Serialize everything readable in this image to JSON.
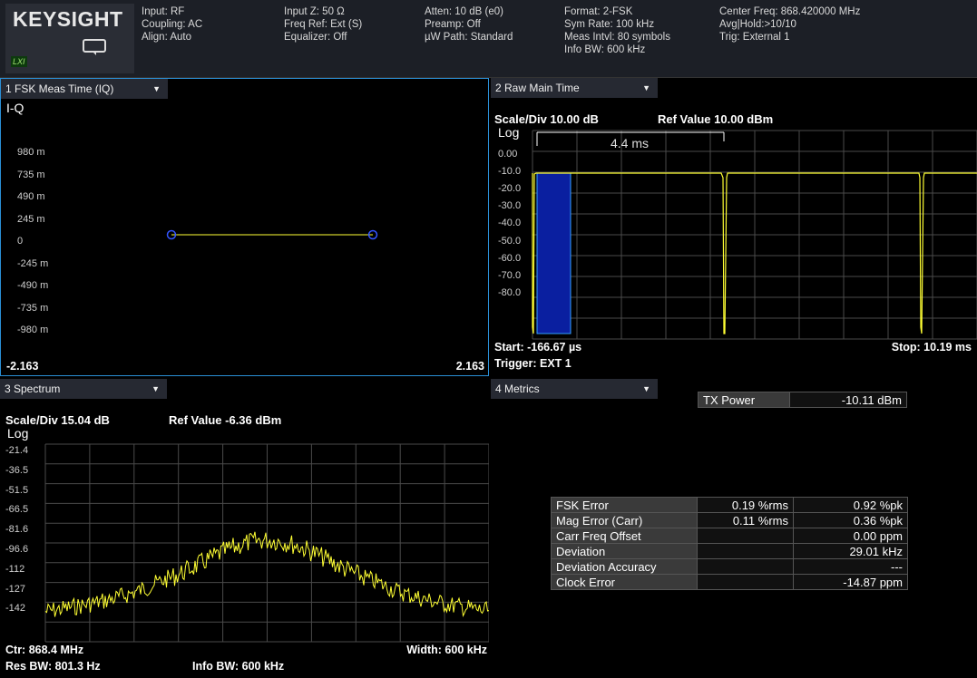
{
  "header": {
    "logo": "KEYSIGHT",
    "badge": "LXI",
    "col1": [
      "Input: RF",
      "Coupling: AC",
      "Align: Auto"
    ],
    "col2": [
      "Input Z: 50 Ω",
      "Freq Ref: Ext (S)",
      "Equalizer: Off"
    ],
    "col3": [
      "Atten: 10 dB (e0)",
      "Preamp: Off",
      "µW Path: Standard"
    ],
    "col4": [
      "Format: 2-FSK",
      "Sym Rate: 100 kHz",
      "Meas Intvl: 80 symbols",
      "Info BW: 600 kHz"
    ],
    "col5": [
      "Center Freq: 868.420000 MHz",
      "Avg|Hold:>10/10",
      "Trig: External 1"
    ]
  },
  "pane1": {
    "tab": "1 FSK Meas Time (IQ)",
    "ylabel": "I-Q",
    "yticks": [
      "980 m",
      "735 m",
      "490 m",
      "245 m",
      "0",
      "-245 m",
      "-490 m",
      "-735 m",
      "-980 m"
    ],
    "xmin": "-2.163",
    "xmax": "2.163"
  },
  "pane2": {
    "tab": "2 Raw Main Time",
    "scale": "Scale/Div 10.00 dB",
    "ref": "Ref Value 10.00 dBm",
    "log": "Log",
    "yticks": [
      "0.00",
      "-10.0",
      "-20.0",
      "-30.0",
      "-40.0",
      "-50.0",
      "-60.0",
      "-70.0",
      "-80.0"
    ],
    "marker_label": "4.4 ms",
    "start": "Start: -166.67 µs",
    "stop": "Stop: 10.19 ms",
    "trigger": "Trigger: EXT 1"
  },
  "pane3": {
    "tab": "3 Spectrum",
    "scale": "Scale/Div 15.04 dB",
    "ref": "Ref Value -6.36 dBm",
    "log": "Log",
    "yticks": [
      "-21.4",
      "-36.5",
      "-51.5",
      "-66.5",
      "-81.6",
      "-96.6",
      "-112",
      "-127",
      "-142"
    ],
    "ctr": "Ctr: 868.4 MHz",
    "width": "Width: 600 kHz",
    "resbw": "Res BW: 801.3 Hz",
    "infobw": "Info BW: 600 kHz"
  },
  "pane4": {
    "tab": "4 Metrics",
    "tx_label": "TX Power",
    "tx_value": "-10.11 dBm",
    "rows": [
      {
        "name": "FSK Error",
        "rms": "0.19 %rms",
        "pk": "0.92 %pk"
      },
      {
        "name": "Mag Error (Carr)",
        "rms": "0.11 %rms",
        "pk": "0.36 %pk"
      },
      {
        "name": "Carr Freq Offset",
        "rms": "",
        "pk": "0.00 ppm"
      },
      {
        "name": "Deviation",
        "rms": "",
        "pk": "29.01 kHz"
      },
      {
        "name": "Deviation Accuracy",
        "rms": "",
        "pk": "---"
      },
      {
        "name": "Clock Error",
        "rms": "",
        "pk": "-14.87 ppm"
      }
    ]
  },
  "colors": {
    "trace": "#ffff33",
    "grid": "#555555",
    "accent": "#2a8fd6",
    "burst": "#0a1fa0"
  }
}
